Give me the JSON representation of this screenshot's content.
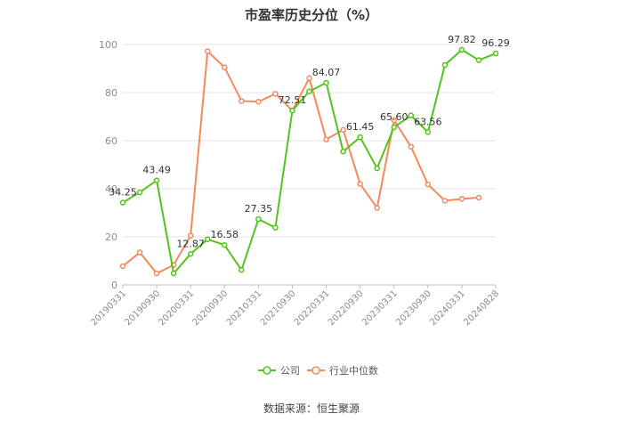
{
  "chart_data": {
    "type": "line",
    "title": "市盈率历史分位（%）",
    "source": "数据来源：恒生聚源",
    "ylim": [
      0,
      100
    ],
    "yticks": [
      0,
      20,
      40,
      60,
      80,
      100
    ],
    "grid": true,
    "legend_position": "bottom",
    "x": [
      "20190331",
      "20190630",
      "20190930",
      "20191231",
      "20200331",
      "20200630",
      "20200930",
      "20201231",
      "20210331",
      "20210630",
      "20210930",
      "20211231",
      "20220331",
      "20220630",
      "20220930",
      "20221231",
      "20230331",
      "20230630",
      "20230930",
      "20231231",
      "20240331",
      "20240630",
      "20240828"
    ],
    "xtick_labels": [
      "20190331",
      "20190930",
      "20200331",
      "20200930",
      "20210331",
      "20210930",
      "20220331",
      "20220930",
      "20230331",
      "20230930",
      "20240331",
      "20240828"
    ],
    "series": [
      {
        "name": "公司",
        "color": "#52c41a",
        "values": [
          34.25,
          38.5,
          43.49,
          4.8,
          12.87,
          19.0,
          16.58,
          6.2,
          27.35,
          23.8,
          72.51,
          80.5,
          84.07,
          55.5,
          61.45,
          48.5,
          65.6,
          70.5,
          63.56,
          91.5,
          97.82,
          93.5,
          96.29
        ],
        "labels": {
          "0": "34.25",
          "2": "43.49",
          "4": "12.87",
          "6": "16.58",
          "8": "27.35",
          "10": "72.51",
          "12": "84.07",
          "14": "61.45",
          "16": "65.60",
          "18": "63.56",
          "20": "97.82",
          "22": "96.29"
        }
      },
      {
        "name": "行业中位数",
        "color": "#f5895c",
        "values": [
          7.8,
          13.5,
          4.8,
          8.3,
          20.5,
          97.2,
          90.5,
          76.5,
          76.2,
          79.5,
          72.5,
          86.0,
          60.5,
          64.5,
          42.0,
          32.0,
          68.5,
          57.5,
          41.8,
          35.0,
          35.8,
          36.3,
          null
        ]
      }
    ]
  }
}
